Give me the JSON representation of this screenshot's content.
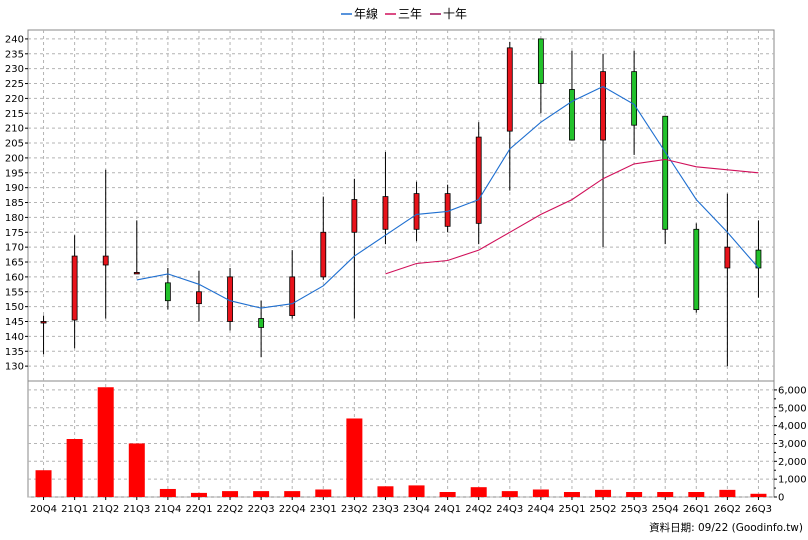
{
  "chart_data": {
    "type": "candlestick",
    "legend": [
      {
        "name": "年線",
        "color": "#1f6fd0"
      },
      {
        "name": "三年",
        "color": "#d0105a"
      },
      {
        "name": "十年",
        "color": "#a0105a"
      }
    ],
    "categories": [
      "20Q4",
      "21Q1",
      "21Q2",
      "21Q3",
      "21Q4",
      "22Q1",
      "22Q2",
      "22Q3",
      "22Q4",
      "23Q1",
      "23Q2",
      "23Q3",
      "23Q4",
      "24Q1",
      "24Q2",
      "24Q3",
      "24Q4",
      "25Q1",
      "25Q2",
      "25Q3",
      "25Q4",
      "26Q1",
      "26Q2",
      "26Q3"
    ],
    "price_axis": {
      "min": 125,
      "max": 243,
      "ticks": [
        130,
        135,
        140,
        145,
        150,
        155,
        160,
        165,
        170,
        175,
        180,
        185,
        190,
        195,
        200,
        205,
        210,
        215,
        220,
        225,
        230,
        235,
        240
      ]
    },
    "volume_axis": {
      "min": 0,
      "max": 6500,
      "ticks": [
        0,
        1000,
        2000,
        3000,
        4000,
        5000,
        6000
      ],
      "tick_labels": [
        "0",
        "1,000",
        "2,000",
        "3,000",
        "4,000",
        "5,000",
        "6,000"
      ]
    },
    "ohlc": [
      {
        "o": 145,
        "h": 147,
        "l": 134,
        "c": 145
      },
      {
        "o": 145.5,
        "h": 174,
        "l": 136,
        "c": 167
      },
      {
        "o": 164,
        "h": 196,
        "l": 146,
        "c": 167
      },
      {
        "o": 161.5,
        "h": 179,
        "l": 161,
        "c": 161.5
      },
      {
        "o": 158,
        "h": 163,
        "l": 149,
        "c": 152
      },
      {
        "o": 151,
        "h": 162,
        "l": 145,
        "c": 155
      },
      {
        "o": 145,
        "h": 163,
        "l": 142,
        "c": 160
      },
      {
        "o": 146,
        "h": 152,
        "l": 133,
        "c": 143
      },
      {
        "o": 147,
        "h": 169,
        "l": 146,
        "c": 160
      },
      {
        "o": 160,
        "h": 187,
        "l": 159,
        "c": 175
      },
      {
        "o": 175,
        "h": 193,
        "l": 146,
        "c": 186
      },
      {
        "o": 176,
        "h": 202,
        "l": 171,
        "c": 187
      },
      {
        "o": 176,
        "h": 192,
        "l": 172,
        "c": 188
      },
      {
        "o": 177,
        "h": 191,
        "l": 175,
        "c": 188
      },
      {
        "o": 178,
        "h": 212,
        "l": 171,
        "c": 207
      },
      {
        "o": 209,
        "h": 239,
        "l": 189,
        "c": 237
      },
      {
        "o": 240,
        "h": 240,
        "l": 215,
        "c": 225
      },
      {
        "o": 223,
        "h": 236,
        "l": 206,
        "c": 206
      },
      {
        "o": 206,
        "h": 235,
        "l": 170,
        "c": 229
      },
      {
        "o": 229,
        "h": 236,
        "l": 201,
        "c": 211
      },
      {
        "o": 214,
        "h": 214,
        "l": 171,
        "c": 176
      },
      {
        "o": 176,
        "h": 178,
        "l": 148,
        "c": 149
      },
      {
        "o": 163,
        "h": 188,
        "l": 130,
        "c": 170
      },
      {
        "o": 169,
        "h": 179,
        "l": 153,
        "c": 163
      }
    ],
    "ma_year": [
      null,
      null,
      null,
      159,
      161,
      157.5,
      152,
      149.5,
      151,
      157,
      167,
      174,
      181,
      182,
      186,
      203,
      212,
      219,
      224,
      218,
      202,
      186,
      175,
      163
    ],
    "ma_3year": [
      null,
      null,
      null,
      null,
      null,
      null,
      null,
      null,
      null,
      null,
      null,
      161,
      164.5,
      165.5,
      169,
      175,
      181,
      186,
      193,
      198,
      199.5,
      197,
      196,
      195
    ],
    "volume": [
      1500,
      3250,
      6150,
      3000,
      450,
      230,
      330,
      330,
      330,
      420,
      4400,
      600,
      650,
      280,
      550,
      330,
      420,
      280,
      400,
      280,
      280,
      280,
      400,
      180
    ],
    "footer": "資料日期: 09/22  (Goodinfo.tw)"
  }
}
